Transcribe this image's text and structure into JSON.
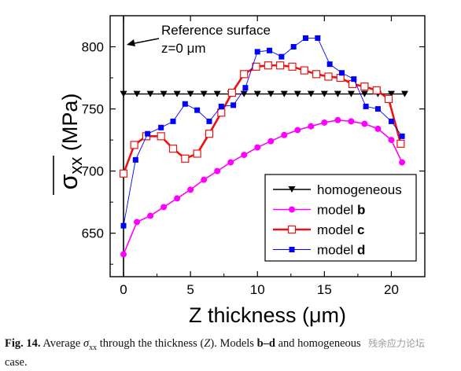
{
  "chart_data": {
    "type": "line",
    "xlabel_main": "Z thickness (",
    "xlabel_unit": "μm",
    "xlabel_close": ")",
    "ylabel_sigma": "σ",
    "ylabel_sub": "xx",
    "ylabel_unit": " (MPa)",
    "xlim": [
      -1,
      22.5
    ],
    "ylim": [
      615,
      825
    ],
    "xticks": [
      0,
      5,
      10,
      15,
      20
    ],
    "yticks": [
      650,
      700,
      750,
      800
    ],
    "annotation": {
      "line1": "Reference surface",
      "line2": "z=0 μm"
    },
    "legend_position": "lower-right",
    "series": [
      {
        "name": "homogeneous",
        "name_bold": "",
        "color": "#000000",
        "marker": "triangle-down",
        "x": [
          0,
          1,
          2,
          3,
          4,
          5,
          6,
          7,
          8,
          9,
          10,
          11,
          12,
          13,
          14,
          15,
          16,
          17,
          18,
          19,
          20,
          21
        ],
        "y": [
          762,
          762,
          762,
          762,
          762,
          762,
          762,
          762,
          762,
          762,
          762,
          762,
          762,
          762,
          762,
          762,
          762,
          762,
          762,
          762,
          762,
          762
        ]
      },
      {
        "name": "model ",
        "name_bold": "b",
        "color": "#ff00ff",
        "marker": "circle",
        "x": [
          0,
          1,
          2,
          3,
          4,
          5,
          6,
          7,
          8,
          9,
          10,
          11,
          12,
          13,
          14,
          15,
          16,
          17,
          18,
          19,
          20,
          20.8
        ],
        "y": [
          633,
          659,
          664,
          671,
          678,
          685,
          693,
          700,
          707,
          713,
          719,
          724,
          729,
          733,
          736,
          739,
          741,
          740,
          738,
          734,
          725,
          707
        ]
      },
      {
        "name": "model ",
        "name_bold": "c",
        "color": "#ee1111",
        "marker": "square-open",
        "x": [
          0,
          0.8,
          1.7,
          2.8,
          3.7,
          4.6,
          5.5,
          6.4,
          7.3,
          8.1,
          9,
          9.9,
          10.8,
          11.7,
          12.6,
          13.5,
          14.4,
          15.3,
          16.2,
          17.1,
          18,
          18.9,
          19.8,
          20.7
        ],
        "y": [
          698,
          721,
          728,
          728,
          718,
          710,
          714,
          730,
          747,
          763,
          778,
          784,
          785,
          785,
          784,
          781,
          778,
          776,
          775,
          770,
          768,
          765,
          758,
          722
        ]
      },
      {
        "name": "model ",
        "name_bold": "d",
        "color": "#0000ff",
        "marker": "square-filled",
        "x": [
          0,
          0.9,
          1.8,
          2.8,
          3.7,
          4.6,
          5.5,
          6.4,
          7.3,
          8.2,
          9.1,
          10,
          10.9,
          11.8,
          12.7,
          13.6,
          14.5,
          15.4,
          16.3,
          17.2,
          18.1,
          19,
          20,
          20.8
        ],
        "y": [
          656,
          709,
          730,
          735,
          740,
          754,
          749,
          740,
          752,
          753,
          767,
          796,
          797,
          792,
          800,
          807,
          807,
          786,
          779,
          774,
          752,
          750,
          740,
          728
        ]
      }
    ]
  },
  "caption": {
    "prefix": "Fig. 14.",
    "text_before_sigma": " Average ",
    "sigma": "σ",
    "sigma_sub": "xx",
    "text_after_sigma": " through the thickness (",
    "z_symbol": "Z",
    "text_after_z": "). Models ",
    "models_bold": "b–d",
    "text_tail_line1": " and homogeneous",
    "text_line2": "case."
  },
  "watermark": "残余应力论坛"
}
